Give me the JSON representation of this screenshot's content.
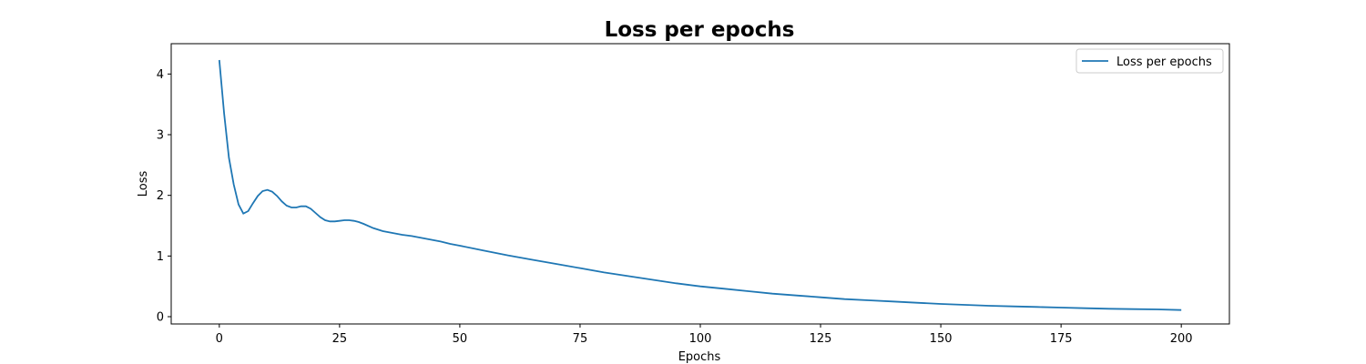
{
  "chart_data": {
    "type": "line",
    "title": "Loss per epochs",
    "xlabel": "Epochs",
    "ylabel": "Loss",
    "xlim": [
      -10,
      210
    ],
    "ylim": [
      -0.12,
      4.5
    ],
    "xticks": [
      0,
      25,
      50,
      75,
      100,
      125,
      150,
      175,
      200
    ],
    "yticks": [
      0,
      1,
      2,
      3,
      4
    ],
    "grid": false,
    "legend_position": "top-right",
    "series": [
      {
        "name": "Loss per epochs",
        "color": "#1f77b4",
        "x": [
          0,
          1,
          2,
          3,
          4,
          5,
          6,
          7,
          8,
          9,
          10,
          11,
          12,
          13,
          14,
          15,
          16,
          17,
          18,
          19,
          20,
          21,
          22,
          23,
          24,
          25,
          26,
          27,
          28,
          29,
          30,
          32,
          34,
          36,
          38,
          40,
          42,
          44,
          46,
          48,
          50,
          55,
          60,
          65,
          70,
          75,
          80,
          85,
          90,
          95,
          100,
          105,
          110,
          115,
          120,
          125,
          130,
          135,
          140,
          145,
          150,
          155,
          160,
          165,
          170,
          175,
          180,
          185,
          190,
          195,
          200
        ],
        "y": [
          4.23,
          3.35,
          2.62,
          2.18,
          1.85,
          1.7,
          1.74,
          1.87,
          1.99,
          2.07,
          2.09,
          2.06,
          1.99,
          1.9,
          1.83,
          1.8,
          1.8,
          1.82,
          1.82,
          1.78,
          1.71,
          1.64,
          1.59,
          1.57,
          1.57,
          1.58,
          1.59,
          1.59,
          1.58,
          1.56,
          1.53,
          1.46,
          1.41,
          1.38,
          1.35,
          1.33,
          1.3,
          1.27,
          1.24,
          1.2,
          1.17,
          1.09,
          1.01,
          0.94,
          0.87,
          0.8,
          0.73,
          0.67,
          0.61,
          0.55,
          0.5,
          0.46,
          0.42,
          0.38,
          0.35,
          0.32,
          0.29,
          0.27,
          0.25,
          0.23,
          0.21,
          0.195,
          0.18,
          0.17,
          0.16,
          0.15,
          0.14,
          0.13,
          0.125,
          0.12,
          0.11
        ]
      }
    ]
  }
}
